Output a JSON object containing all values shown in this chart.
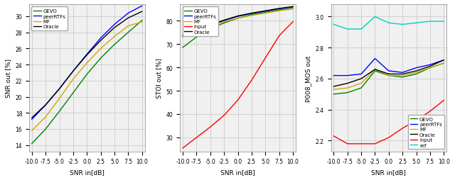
{
  "snr_in": [
    -10,
    -7.5,
    -5,
    -2.5,
    0,
    2.5,
    5,
    7.5,
    10
  ],
  "plot1": {
    "ylabel": "SNR out [%]",
    "xlabel": "SNR in[dB]",
    "yticks": [
      14,
      16,
      18,
      20,
      22,
      24,
      26,
      28,
      30
    ],
    "ylim": [
      13.2,
      31.5
    ],
    "series": [
      {
        "name": "GEVO",
        "color": "#008000",
        "values": [
          14.2,
          16.0,
          18.2,
          20.5,
          22.8,
          24.8,
          26.5,
          28.0,
          29.5
        ]
      },
      {
        "name": "peerRTFs",
        "color": "#0000ff",
        "values": [
          17.2,
          19.0,
          21.0,
          23.2,
          25.3,
          27.3,
          29.0,
          30.4,
          31.3
        ]
      },
      {
        "name": "MF",
        "color": "#ccaa00",
        "values": [
          15.8,
          17.5,
          19.8,
          22.2,
          24.2,
          26.0,
          27.5,
          28.8,
          29.3
        ]
      },
      {
        "name": "Oracle",
        "color": "#000000",
        "values": [
          17.4,
          19.0,
          21.0,
          23.2,
          25.2,
          27.0,
          28.6,
          29.8,
          30.6
        ]
      }
    ]
  },
  "plot2": {
    "ylabel": "STOI out [%]",
    "xlabel": "SNR in[dB]",
    "yticks": [
      30,
      40,
      50,
      60,
      70,
      80
    ],
    "ylim": [
      24,
      87
    ],
    "series": [
      {
        "name": "GEVO",
        "color": "#008000",
        "values": [
          68.5,
          73.0,
          76.5,
          79.0,
          81.0,
          82.5,
          83.5,
          84.5,
          85.2
        ]
      },
      {
        "name": "peerRTFs",
        "color": "#0000ff",
        "values": [
          73.5,
          75.5,
          78.0,
          80.0,
          81.8,
          83.0,
          84.0,
          85.0,
          85.8
        ]
      },
      {
        "name": "MF",
        "color": "#ccaa00",
        "values": [
          73.0,
          75.0,
          77.5,
          79.5,
          81.0,
          82.2,
          83.2,
          84.2,
          85.0
        ]
      },
      {
        "name": "input",
        "color": "#ff0000",
        "values": [
          25.5,
          30.0,
          34.5,
          39.5,
          46.0,
          54.5,
          64.0,
          73.5,
          79.5
        ]
      },
      {
        "name": "Oracle",
        "color": "#000000",
        "values": [
          74.0,
          75.8,
          78.2,
          80.2,
          82.0,
          83.2,
          84.2,
          85.2,
          86.0
        ]
      }
    ]
  },
  "plot3": {
    "ylabel": "P008_MOS out",
    "xlabel": "SNR in[dB]",
    "yticks": [
      2.2,
      2.4,
      2.6,
      2.8,
      3.0
    ],
    "ylim": [
      2.13,
      3.08
    ],
    "series": [
      {
        "name": "GEVO",
        "color": "#008000",
        "values": [
          2.5,
          2.51,
          2.54,
          2.65,
          2.62,
          2.61,
          2.63,
          2.67,
          2.7
        ]
      },
      {
        "name": "peerRTFs",
        "color": "#0000ff",
        "values": [
          2.62,
          2.62,
          2.63,
          2.73,
          2.65,
          2.64,
          2.67,
          2.69,
          2.72
        ]
      },
      {
        "name": "MF",
        "color": "#ccaa00",
        "values": [
          2.53,
          2.54,
          2.57,
          2.66,
          2.62,
          2.62,
          2.64,
          2.67,
          2.7
        ]
      },
      {
        "name": "Oracle",
        "color": "#000000",
        "values": [
          2.55,
          2.57,
          2.6,
          2.66,
          2.63,
          2.63,
          2.65,
          2.68,
          2.72
        ]
      },
      {
        "name": "input",
        "color": "#ff0000",
        "values": [
          2.23,
          2.18,
          2.18,
          2.18,
          2.22,
          2.28,
          2.33,
          2.39,
          2.46
        ]
      },
      {
        "name": "ref",
        "color": "#00cccc",
        "values": [
          2.95,
          2.92,
          2.92,
          3.0,
          2.96,
          2.95,
          2.96,
          2.97,
          2.97
        ]
      }
    ]
  },
  "xticks": [
    -10,
    -7.5,
    -5,
    -2.5,
    0,
    2.5,
    5,
    7.5,
    10
  ],
  "xticklabels": [
    "-10.0",
    "-7.5",
    "-5.0",
    "-2.5",
    "0.0",
    "2.5",
    "5.0",
    "7.5",
    "10.0"
  ],
  "xlim": [
    -10.5,
    10.5
  ],
  "grid_color": "#cccccc",
  "bg_color": "#f0f0f0"
}
